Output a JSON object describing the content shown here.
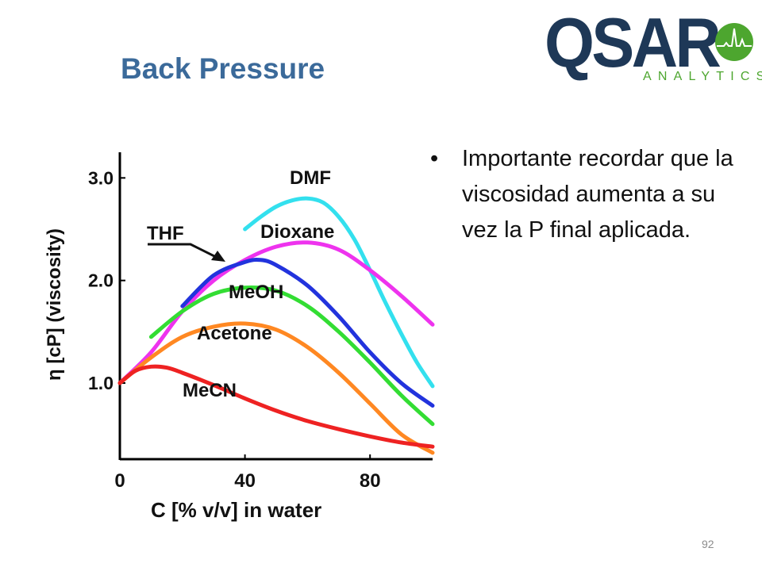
{
  "slide": {
    "title": "Back Pressure",
    "bullet": "Importante recordar que la viscosidad aumenta a su vez la P final aplicada.",
    "page_number": "92"
  },
  "logo": {
    "wordmark": "QSAR",
    "tagline": "ANALYTICS",
    "colors": {
      "navy": "#1e3857",
      "green": "#4da62f"
    },
    "icon": "green-circle-chromatogram-icon"
  },
  "chart_data": {
    "type": "line",
    "xlabel": "C [% v/v] in water",
    "ylabel": "η [cP] (viscosity)",
    "xlim": [
      0,
      100
    ],
    "ylim": [
      0.25,
      3.25
    ],
    "x_ticks": [
      0,
      40,
      80
    ],
    "y_ticks": [
      1.0,
      2.0,
      3.0
    ],
    "x_tick_labels": [
      "0",
      "40",
      "80"
    ],
    "y_tick_labels": [
      "1.0",
      "2.0",
      "3.0"
    ],
    "grid": false,
    "legend": "inline labels",
    "series": [
      {
        "name": "DMF",
        "color": "#33e0ee",
        "x": [
          40,
          45,
          50,
          55,
          60,
          65,
          70,
          75,
          80,
          85,
          90,
          95,
          100
        ],
        "y": [
          2.5,
          2.62,
          2.72,
          2.78,
          2.8,
          2.76,
          2.62,
          2.4,
          2.1,
          1.78,
          1.48,
          1.2,
          0.97
        ]
      },
      {
        "name": "Dioxane",
        "color": "#ee33ee",
        "x": [
          0,
          10,
          20,
          30,
          40,
          50,
          60,
          70,
          80,
          90,
          100
        ],
        "y": [
          1.0,
          1.3,
          1.7,
          2.0,
          2.2,
          2.33,
          2.37,
          2.3,
          2.1,
          1.85,
          1.57
        ]
      },
      {
        "name": "THF",
        "color": "#2233dd",
        "x": [
          20,
          30,
          40,
          45,
          50,
          60,
          70,
          80,
          90,
          100
        ],
        "y": [
          1.75,
          2.05,
          2.18,
          2.2,
          2.15,
          1.95,
          1.65,
          1.3,
          1.0,
          0.78
        ]
      },
      {
        "name": "MeOH",
        "color": "#33dd33",
        "x": [
          10,
          20,
          30,
          40,
          50,
          60,
          70,
          80,
          90,
          100
        ],
        "y": [
          1.45,
          1.7,
          1.87,
          1.93,
          1.9,
          1.75,
          1.5,
          1.2,
          0.88,
          0.6
        ]
      },
      {
        "name": "Acetone",
        "color": "#ff8822",
        "x": [
          0,
          10,
          20,
          30,
          40,
          50,
          60,
          70,
          80,
          90,
          100
        ],
        "y": [
          1.0,
          1.25,
          1.45,
          1.55,
          1.58,
          1.52,
          1.35,
          1.1,
          0.8,
          0.5,
          0.32
        ]
      },
      {
        "name": "MeCN",
        "color": "#ee2222",
        "x": [
          0,
          5,
          10,
          15,
          20,
          30,
          40,
          50,
          60,
          70,
          80,
          90,
          100
        ],
        "y": [
          1.0,
          1.12,
          1.16,
          1.15,
          1.1,
          0.98,
          0.85,
          0.73,
          0.63,
          0.55,
          0.48,
          0.42,
          0.38
        ]
      }
    ]
  }
}
